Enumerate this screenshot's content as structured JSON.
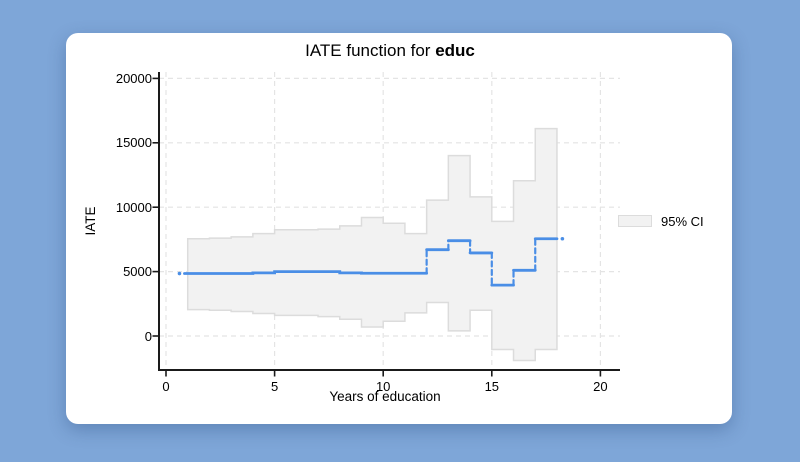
{
  "page": {
    "background_color": "#7ea6d8",
    "card_color": "#ffffff"
  },
  "chart_data": {
    "type": "line",
    "style": "step-function with stepped confidence band",
    "title": "IATE function for educ",
    "title_prefix": "IATE function for ",
    "title_bold": "educ",
    "xlabel": "Years of education",
    "ylabel": "IATE",
    "xticks": [
      0,
      5,
      10,
      15,
      20
    ],
    "yticks": [
      0,
      5000,
      10000,
      15000,
      20000
    ],
    "xlim": [
      -0.3,
      20.9
    ],
    "ylim": [
      -2650,
      20500
    ],
    "grid": true,
    "legend": {
      "position": "right",
      "items": [
        {
          "label": "95% CI",
          "swatch": "area"
        }
      ]
    },
    "colors": {
      "line": "#4a8ee6",
      "ci_fill": "#f2f2f2",
      "ci_border": "#dcdcdc",
      "grid": "#e4e4e4",
      "axis": "#1a1a1a"
    },
    "step_edges": [
      1,
      2,
      3,
      4,
      5,
      6,
      7,
      8,
      9,
      10,
      11,
      12,
      13,
      14,
      15,
      16,
      17,
      18
    ],
    "line_start_x": 0.85,
    "series": [
      {
        "name": "IATE",
        "values": [
          4850,
          4850,
          4850,
          4900,
          5000,
          5000,
          5000,
          4900,
          4870,
          4870,
          4870,
          6700,
          7400,
          6450,
          3950,
          5100,
          7550
        ]
      },
      {
        "name": "95% CI upper",
        "values": [
          7550,
          7600,
          7700,
          7950,
          8250,
          8250,
          8300,
          8550,
          9200,
          8750,
          7950,
          10550,
          14000,
          10800,
          8900,
          12050,
          16100
        ]
      },
      {
        "name": "95% CI lower",
        "values": [
          2050,
          2000,
          1900,
          1750,
          1600,
          1600,
          1500,
          1300,
          700,
          1150,
          1800,
          2600,
          400,
          2000,
          -1050,
          -1900,
          -1050
        ]
      }
    ],
    "end_markers": [
      {
        "x": 0.62,
        "value": 4850
      },
      {
        "x": 18.25,
        "value": 7550
      }
    ]
  }
}
